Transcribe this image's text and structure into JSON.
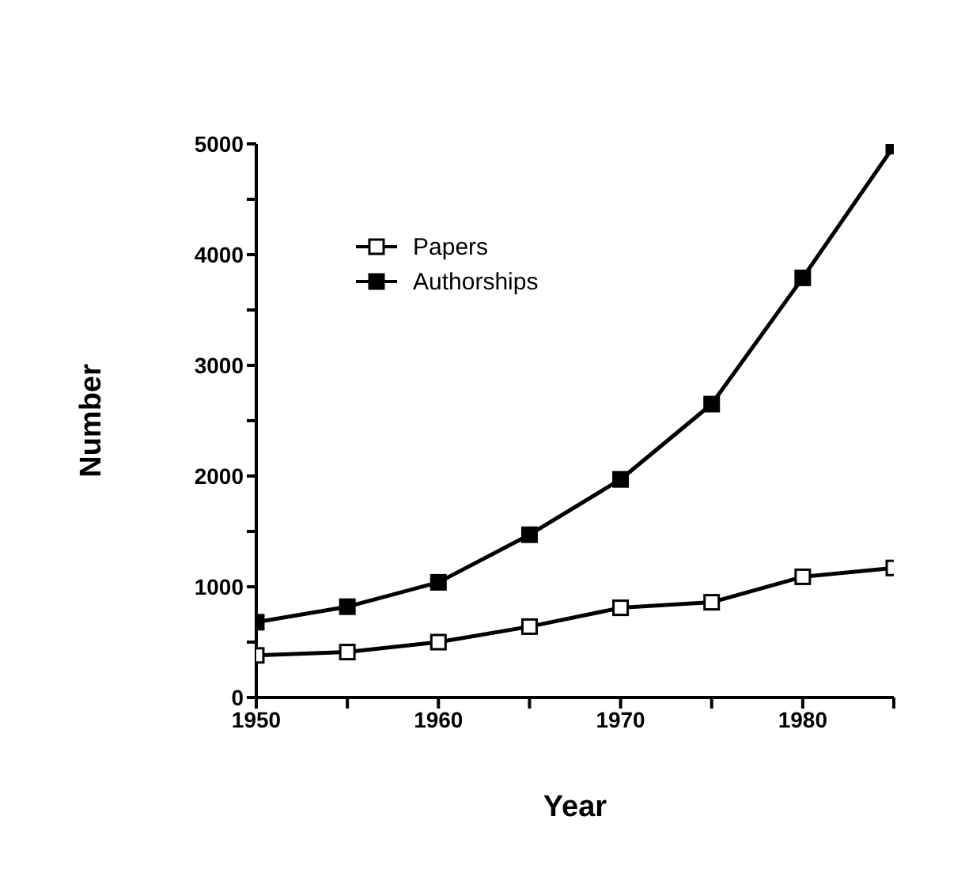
{
  "chart_data": {
    "type": "line",
    "xlabel": "Year",
    "ylabel": "Number",
    "x": [
      1950,
      1955,
      1960,
      1965,
      1970,
      1975,
      1980,
      1985
    ],
    "series": [
      {
        "name": "Papers",
        "color": "#000000",
        "values": [
          380,
          410,
          500,
          640,
          810,
          860,
          1090,
          1170
        ]
      },
      {
        "name": "Authorships",
        "color": "#000000",
        "values": [
          680,
          820,
          1040,
          1470,
          1970,
          2650,
          3790,
          4980
        ]
      }
    ],
    "xlim": [
      1950,
      1985
    ],
    "xticks": [
      1950,
      {
        "value": 1955,
        "label": null
      },
      1960,
      {
        "value": 1965,
        "label": null
      },
      1970,
      {
        "value": 1975,
        "label": null
      },
      1980,
      {
        "value": 1985,
        "label": null
      }
    ],
    "ylim": [
      0,
      5000
    ],
    "yticks": [
      0,
      {
        "value": 500,
        "label": null
      },
      1000,
      {
        "value": 1500,
        "label": null
      },
      2000,
      {
        "value": 2500,
        "label": null
      },
      3000,
      {
        "value": 3500,
        "label": null
      },
      4000,
      {
        "value": 4500,
        "label": null
      },
      5000
    ],
    "grid": false,
    "legend": "top left",
    "marker": "square",
    "line_style": "solid"
  }
}
